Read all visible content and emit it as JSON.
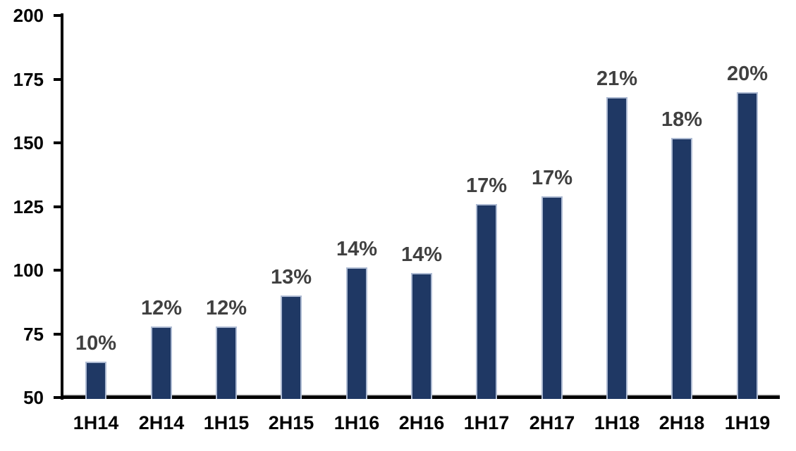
{
  "chart_data": {
    "type": "bar",
    "categories": [
      "1H14",
      "2H14",
      "1H15",
      "2H15",
      "1H16",
      "2H16",
      "1H17",
      "2H17",
      "1H18",
      "2H18",
      "1H19"
    ],
    "values": [
      64,
      78,
      78,
      90,
      101,
      99,
      126,
      129,
      168,
      152,
      170
    ],
    "data_labels": [
      "10%",
      "12%",
      "12%",
      "13%",
      "14%",
      "14%",
      "17%",
      "17%",
      "21%",
      "18%",
      "20%"
    ],
    "title": "",
    "xlabel": "",
    "ylabel": "",
    "ylim": [
      50,
      200
    ],
    "yticks": [
      "50",
      "75",
      "100",
      "125",
      "150",
      "175",
      "200"
    ],
    "grid": false,
    "legend": null,
    "colors": {
      "bar_fill": "#1F3864",
      "bar_border": "#AEBBD3",
      "data_label": "#404040",
      "axis_text": "#000000",
      "axis_line": "#000000",
      "plot_border": "#D9D9D9"
    }
  }
}
